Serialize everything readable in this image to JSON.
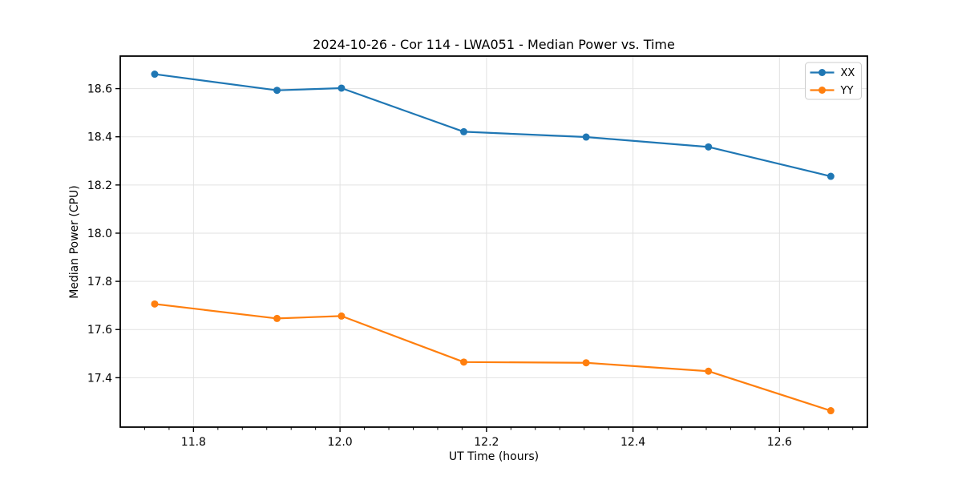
{
  "figure": {
    "background": "#ffffff"
  },
  "chart_data": {
    "type": "line",
    "title": "2024-10-26 - Cor 114 - LWA051 - Median Power vs. Time",
    "xlabel": "UT Time (hours)",
    "ylabel": "Median Power (CPU)",
    "xlim": [
      11.7,
      12.72
    ],
    "ylim": [
      17.195,
      18.735
    ],
    "x_ticks": [
      11.8,
      12.0,
      12.2,
      12.4,
      12.6
    ],
    "y_ticks": [
      17.4,
      17.6,
      17.8,
      18.0,
      18.2,
      18.4,
      18.6
    ],
    "x_minor_divisions": 6,
    "grid": true,
    "legend": {
      "position": "upper right",
      "entries": [
        "XX",
        "YY"
      ]
    },
    "colors": {
      "grid": "#e2e2e2",
      "axes": "#000000",
      "text": "#000000",
      "legend_border": "#cccccc",
      "series_xx": "#1f77b4",
      "series_yy": "#ff7f0e"
    },
    "x": [
      11.747,
      11.914,
      12.002,
      12.169,
      12.336,
      12.503,
      12.67
    ],
    "series": [
      {
        "name": "XX",
        "color": "#1f77b4",
        "values": [
          18.66,
          18.593,
          18.602,
          18.421,
          18.399,
          18.358,
          18.236
        ]
      },
      {
        "name": "YY",
        "color": "#ff7f0e",
        "values": [
          17.706,
          17.646,
          17.656,
          17.465,
          17.462,
          17.427,
          17.263
        ]
      }
    ]
  }
}
